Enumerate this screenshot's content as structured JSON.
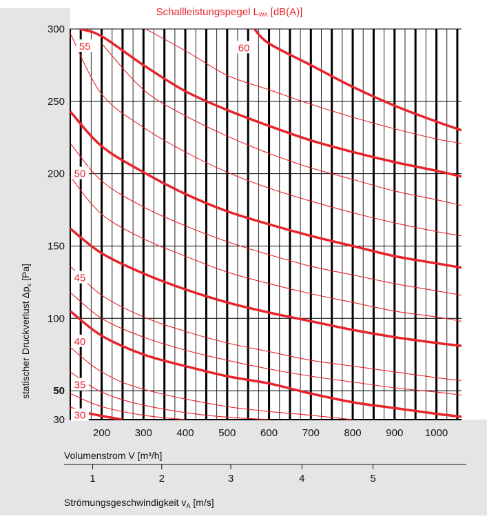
{
  "chart_data": {
    "type": "line",
    "title": "Schallleistungspegel L",
    "title_sub": "WA",
    "title_unit": " [dB(A)]",
    "xlabel": "Volumenstrom V [m³/h]",
    "ylabel_main": "statischer Druckverlust Δp",
    "ylabel_sub": "s",
    "ylabel_unit": " [Pa]",
    "xlabel2_main": "Strömungsgeschwindigkeit v",
    "xlabel2_sub": "A",
    "xlabel2_unit": " [m/s]",
    "xlim": [
      125,
      1060
    ],
    "ylim": [
      30,
      300
    ],
    "x_ticks": [
      200,
      300,
      400,
      500,
      600,
      700,
      800,
      900,
      1000
    ],
    "y_ticks": [
      30,
      50,
      100,
      150,
      200,
      250,
      300
    ],
    "v_axis_ticks": [
      {
        "value": 1,
        "flow": 195
      },
      {
        "value": 2,
        "flow": 360
      },
      {
        "value": 3,
        "flow": 525
      },
      {
        "value": 4,
        "flow": 695
      },
      {
        "value": 5,
        "flow": 865
      }
    ],
    "grid": true,
    "line_color": "#e8232a",
    "annotations": [
      {
        "label": "30",
        "x": 148,
        "y": 33
      },
      {
        "label": "35",
        "x": 148,
        "y": 54
      },
      {
        "label": "40",
        "x": 148,
        "y": 84
      },
      {
        "label": "45",
        "x": 148,
        "y": 128
      },
      {
        "label": "50",
        "x": 148,
        "y": 200
      },
      {
        "label": "55",
        "x": 160,
        "y": 288
      },
      {
        "label": "60",
        "x": 540,
        "y": 287
      }
    ],
    "series": [
      {
        "name": "30",
        "major": true,
        "points": [
          [
            125,
            38
          ],
          [
            175,
            34
          ],
          [
            250,
            30
          ]
        ]
      },
      {
        "name": "",
        "major": false,
        "points": [
          [
            125,
            48
          ],
          [
            200,
            39
          ],
          [
            300,
            33
          ],
          [
            400,
            30
          ]
        ]
      },
      {
        "name": "35",
        "major": false,
        "points": [
          [
            125,
            63
          ],
          [
            200,
            49
          ],
          [
            300,
            40
          ],
          [
            450,
            33
          ],
          [
            600,
            30
          ]
        ]
      },
      {
        "name": "",
        "major": false,
        "points": [
          [
            125,
            80
          ],
          [
            200,
            63
          ],
          [
            300,
            51
          ],
          [
            500,
            39
          ],
          [
            700,
            33
          ],
          [
            800,
            30
          ]
        ]
      },
      {
        "name": "40",
        "major": true,
        "points": [
          [
            125,
            105
          ],
          [
            200,
            88
          ],
          [
            300,
            75
          ],
          [
            400,
            67
          ],
          [
            500,
            60
          ],
          [
            600,
            55
          ],
          [
            700,
            48
          ],
          [
            800,
            42
          ],
          [
            900,
            38
          ],
          [
            1000,
            34
          ],
          [
            1060,
            32
          ]
        ]
      },
      {
        "name": "",
        "major": false,
        "points": [
          [
            125,
            118
          ],
          [
            200,
            100
          ],
          [
            300,
            87
          ],
          [
            400,
            78
          ],
          [
            500,
            71
          ],
          [
            600,
            65
          ],
          [
            700,
            60
          ],
          [
            800,
            56
          ],
          [
            900,
            52
          ],
          [
            1000,
            49
          ],
          [
            1060,
            47
          ]
        ]
      },
      {
        "name": "",
        "major": false,
        "points": [
          [
            125,
            136
          ],
          [
            200,
            116
          ],
          [
            300,
            101
          ],
          [
            400,
            91
          ],
          [
            500,
            83
          ],
          [
            600,
            77
          ],
          [
            700,
            71
          ],
          [
            800,
            67
          ],
          [
            900,
            63
          ],
          [
            1000,
            59
          ],
          [
            1060,
            57
          ]
        ]
      },
      {
        "name": "45",
        "major": true,
        "points": [
          [
            125,
            162
          ],
          [
            200,
            145
          ],
          [
            300,
            131
          ],
          [
            400,
            120
          ],
          [
            500,
            111
          ],
          [
            600,
            104
          ],
          [
            700,
            98
          ],
          [
            800,
            92
          ],
          [
            900,
            87
          ],
          [
            1000,
            83
          ],
          [
            1060,
            81
          ]
        ]
      },
      {
        "name": "",
        "major": false,
        "points": [
          [
            125,
            198
          ],
          [
            200,
            172
          ],
          [
            300,
            155
          ],
          [
            400,
            143
          ],
          [
            500,
            132
          ],
          [
            600,
            124
          ],
          [
            700,
            117
          ],
          [
            800,
            111
          ],
          [
            900,
            105
          ],
          [
            1000,
            101
          ],
          [
            1060,
            98
          ]
        ]
      },
      {
        "name": "",
        "major": false,
        "points": [
          [
            125,
            221
          ],
          [
            200,
            195
          ],
          [
            300,
            177
          ],
          [
            400,
            164
          ],
          [
            500,
            153
          ],
          [
            600,
            144
          ],
          [
            700,
            136
          ],
          [
            800,
            130
          ],
          [
            900,
            124
          ],
          [
            1000,
            119
          ],
          [
            1060,
            116
          ]
        ]
      },
      {
        "name": "50",
        "major": true,
        "points": [
          [
            125,
            243
          ],
          [
            200,
            219
          ],
          [
            300,
            201
          ],
          [
            400,
            186
          ],
          [
            500,
            174
          ],
          [
            600,
            165
          ],
          [
            700,
            157
          ],
          [
            800,
            150
          ],
          [
            900,
            143
          ],
          [
            1000,
            138
          ],
          [
            1060,
            135
          ]
        ]
      },
      {
        "name": "",
        "major": false,
        "points": [
          [
            125,
            297
          ],
          [
            200,
            255
          ],
          [
            300,
            232
          ],
          [
            400,
            215
          ],
          [
            500,
            201
          ],
          [
            600,
            190
          ],
          [
            700,
            181
          ],
          [
            800,
            173
          ],
          [
            900,
            166
          ],
          [
            1000,
            160
          ],
          [
            1060,
            157
          ]
        ]
      },
      {
        "name": "",
        "major": false,
        "points": [
          [
            200,
            290
          ],
          [
            300,
            258
          ],
          [
            400,
            240
          ],
          [
            500,
            226
          ],
          [
            600,
            214
          ],
          [
            700,
            204
          ],
          [
            800,
            196
          ],
          [
            900,
            188
          ],
          [
            1000,
            182
          ],
          [
            1060,
            178
          ]
        ]
      },
      {
        "name": "55",
        "major": true,
        "points": [
          [
            148,
            300
          ],
          [
            200,
            295
          ],
          [
            300,
            275
          ],
          [
            400,
            257
          ],
          [
            500,
            244
          ],
          [
            600,
            233
          ],
          [
            700,
            223
          ],
          [
            800,
            215
          ],
          [
            900,
            208
          ],
          [
            1000,
            202
          ],
          [
            1060,
            198
          ]
        ]
      },
      {
        "name": "",
        "major": false,
        "points": [
          [
            305,
            300
          ],
          [
            400,
            285
          ],
          [
            500,
            268
          ],
          [
            600,
            258
          ],
          [
            700,
            248
          ],
          [
            800,
            239
          ],
          [
            900,
            231
          ],
          [
            1000,
            224
          ],
          [
            1060,
            221
          ]
        ]
      },
      {
        "name": "60",
        "major": true,
        "points": [
          [
            565,
            300
          ],
          [
            600,
            290
          ],
          [
            700,
            275
          ],
          [
            800,
            260
          ],
          [
            900,
            247
          ],
          [
            1000,
            236
          ],
          [
            1060,
            230
          ]
        ]
      }
    ]
  }
}
